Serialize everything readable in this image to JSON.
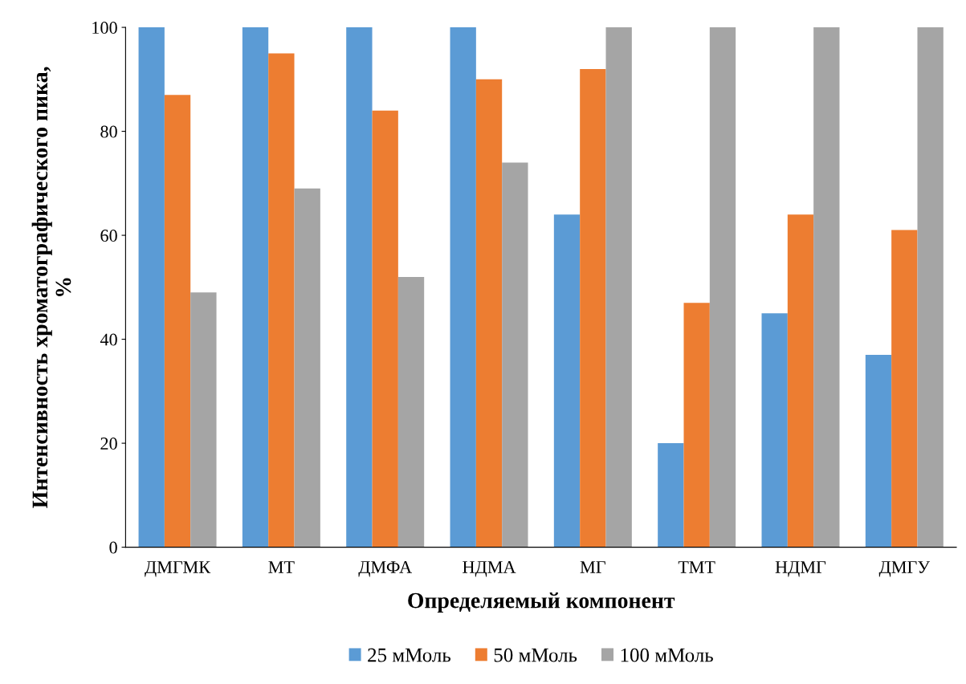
{
  "chart_data": {
    "type": "bar",
    "xlabel": "Определяемый компонент",
    "ylabel": "Интенсивность хроматографического пика, %",
    "categories": [
      "ДМГМК",
      "МТ",
      "ДМФА",
      "НДМА",
      "МГ",
      "ТМТ",
      "НДМГ",
      "ДМГУ"
    ],
    "series": [
      {
        "name": "25 мМоль",
        "color": "#5b9bd5",
        "values": [
          100,
          100,
          100,
          100,
          64,
          20,
          45,
          37
        ]
      },
      {
        "name": "50 мМоль",
        "color": "#ed7d31",
        "values": [
          87,
          95,
          84,
          90,
          92,
          47,
          64,
          61
        ]
      },
      {
        "name": "100 мМоль",
        "color": "#a5a5a5",
        "values": [
          49,
          69,
          52,
          74,
          100,
          100,
          100,
          100
        ]
      }
    ],
    "ylim": [
      0,
      100
    ],
    "yticks": [
      0,
      20,
      40,
      60,
      80,
      100
    ],
    "grid": false,
    "legend": "bottom"
  }
}
